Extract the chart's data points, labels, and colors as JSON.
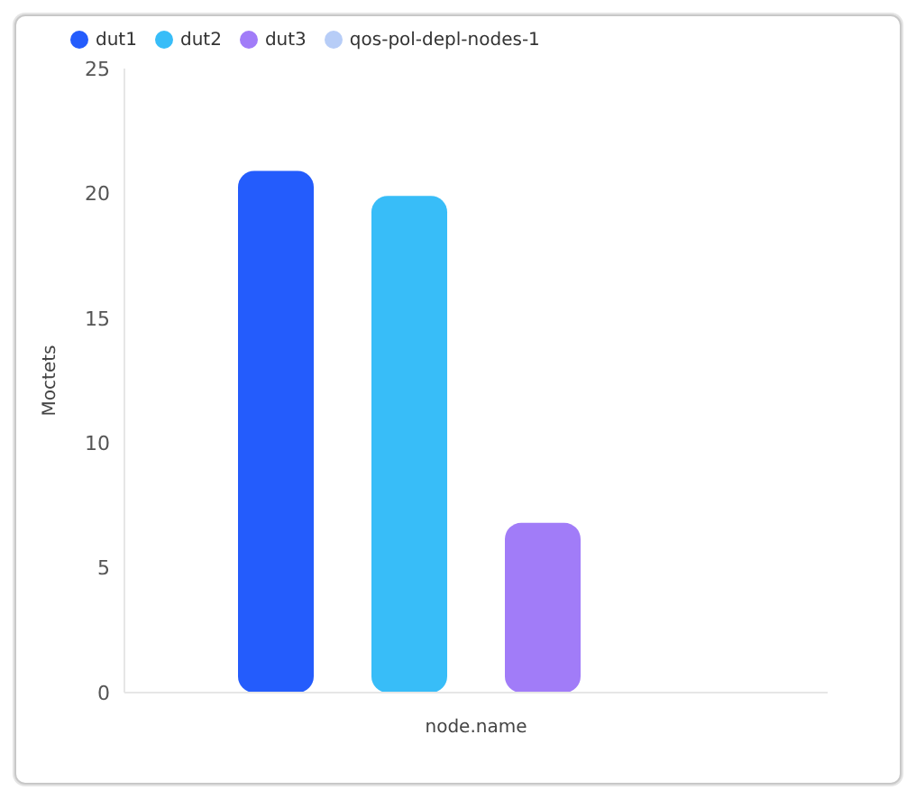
{
  "chart_data": {
    "type": "bar",
    "xlabel": "node.name",
    "ylabel": "Moctets",
    "categories": [
      null
    ],
    "series": [
      {
        "name": "dut1",
        "color": "#245cfc",
        "values": [
          20.9
        ]
      },
      {
        "name": "dut2",
        "color": "#38bdf8",
        "values": [
          19.9
        ]
      },
      {
        "name": "dut3",
        "color": "#a17cf8",
        "values": [
          6.8
        ]
      },
      {
        "name": "qos-pol-depl-nodes-1",
        "color": "#b7cdf7",
        "values": [
          null
        ]
      }
    ],
    "ylim": [
      0,
      25
    ],
    "yticks": [
      0,
      5,
      10,
      15,
      20,
      25
    ],
    "grid": false,
    "legend": "top left"
  }
}
